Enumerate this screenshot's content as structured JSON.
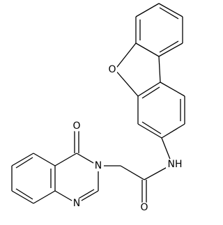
{
  "atoms": [
    {
      "label": "O"
    },
    {
      "label": "NH"
    },
    {
      "label": "O"
    },
    {
      "label": "N"
    },
    {
      "label": "O"
    },
    {
      "label": "N"
    }
  ]
}
